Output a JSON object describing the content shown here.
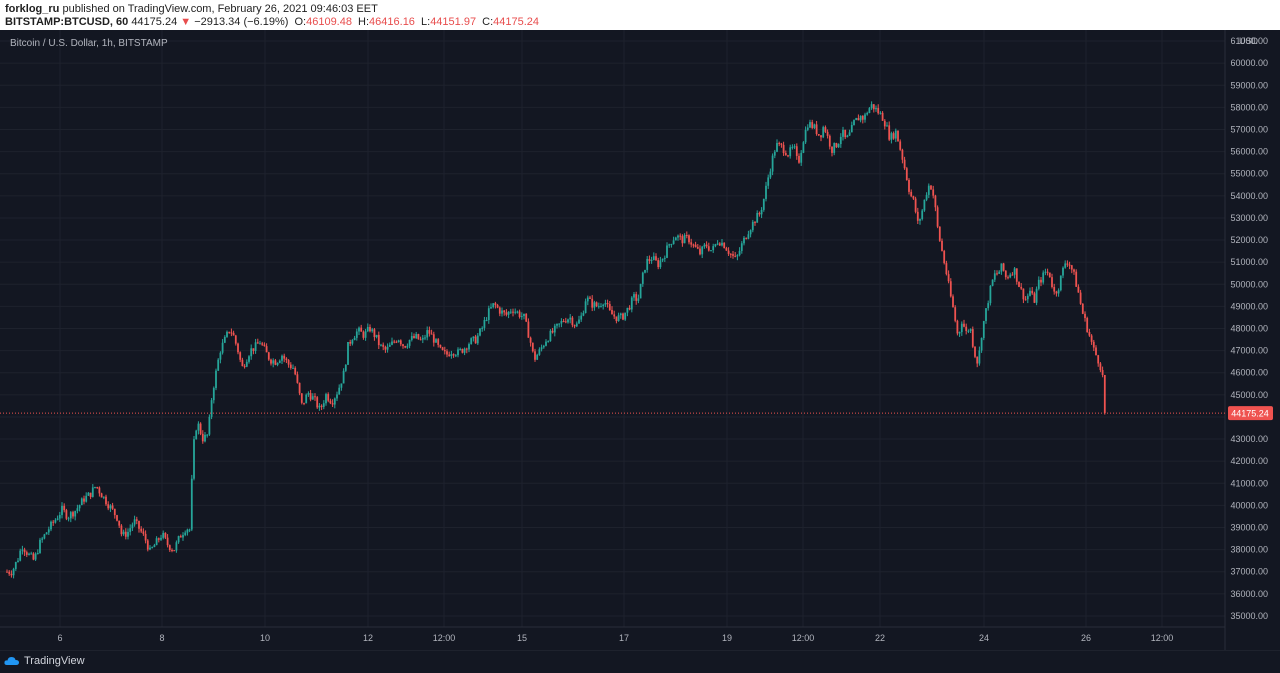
{
  "header": {
    "publisher": "forklog_ru",
    "published_text": "published on TradingView.com, February 26, 2021 09:46:03 EET",
    "symbol": "BITSTAMP:BTCUSD, 60",
    "last": "44175.24",
    "change_arrow": "▼",
    "change": "−2913.34 (−6.19%)",
    "o_label": "O:",
    "o_value": "46109.48",
    "h_label": "H:",
    "h_value": "46416.16",
    "l_label": "L:",
    "l_value": "44151.97",
    "c_label": "C:",
    "c_value": "44175.24"
  },
  "footer": {
    "brand": "TradingView"
  },
  "colors": {
    "up": "#26a69a",
    "down": "#ef5350",
    "background": "#131722",
    "grid": "#1e222d",
    "text": "#b2b5be"
  },
  "chart_data": {
    "type": "candlestick",
    "title": "Bitcoin / U.S. Dollar, 1h, BITSTAMP",
    "currency": "USD",
    "y_axis": {
      "min": 34500,
      "max": 61500,
      "ticks": [
        35000,
        36000,
        37000,
        38000,
        39000,
        40000,
        41000,
        42000,
        43000,
        44000,
        45000,
        46000,
        47000,
        48000,
        49000,
        50000,
        51000,
        52000,
        53000,
        54000,
        55000,
        56000,
        57000,
        58000,
        59000,
        60000,
        61000
      ]
    },
    "y_tick_labels": [
      "35000.00",
      "36000.00",
      "37000.00",
      "38000.00",
      "39000.00",
      "40000.00",
      "41000.00",
      "42000.00",
      "43000.00",
      "44000.00",
      "45000.00",
      "46000.00",
      "47000.00",
      "48000.00",
      "49000.00",
      "50000.00",
      "51000.00",
      "52000.00",
      "53000.00",
      "54000.00",
      "55000.00",
      "56000.00",
      "57000.00",
      "58000.00",
      "59000.00",
      "60000.00",
      "61000.00"
    ],
    "x_tick_labels": [
      "6",
      "8",
      "10",
      "12",
      "12:00",
      "15",
      "17",
      "19",
      "12:00",
      "22",
      "24",
      "26",
      "12:00"
    ],
    "last_price": 44175.24,
    "last_price_label": "44175.24",
    "price_path": [
      [
        0,
        37700
      ],
      [
        6,
        37000
      ],
      [
        12,
        37000
      ],
      [
        18,
        37600
      ],
      [
        22,
        38200
      ],
      [
        28,
        37800
      ],
      [
        34,
        37500
      ],
      [
        40,
        38300
      ],
      [
        48,
        38900
      ],
      [
        56,
        39400
      ],
      [
        62,
        39800
      ],
      [
        68,
        39500
      ],
      [
        76,
        39800
      ],
      [
        84,
        40300
      ],
      [
        90,
        40500
      ],
      [
        96,
        40900
      ],
      [
        100,
        40600
      ],
      [
        106,
        40200
      ],
      [
        112,
        39800
      ],
      [
        118,
        39400
      ],
      [
        122,
        38600
      ],
      [
        128,
        38800
      ],
      [
        134,
        39300
      ],
      [
        140,
        38900
      ],
      [
        146,
        38400
      ],
      [
        150,
        37900
      ],
      [
        156,
        38300
      ],
      [
        162,
        38700
      ],
      [
        168,
        38200
      ],
      [
        174,
        38000
      ],
      [
        180,
        38600
      ],
      [
        186,
        39000
      ],
      [
        190,
        38900
      ],
      [
        193,
        42500
      ],
      [
        197,
        43800
      ],
      [
        203,
        43000
      ],
      [
        208,
        43200
      ],
      [
        212,
        45000
      ],
      [
        216,
        46000
      ],
      [
        220,
        47000
      ],
      [
        226,
        47600
      ],
      [
        230,
        48000
      ],
      [
        234,
        47600
      ],
      [
        238,
        47000
      ],
      [
        242,
        46200
      ],
      [
        246,
        46600
      ],
      [
        250,
        47000
      ],
      [
        256,
        47200
      ],
      [
        260,
        47400
      ],
      [
        266,
        46900
      ],
      [
        270,
        46600
      ],
      [
        276,
        46500
      ],
      [
        282,
        46800
      ],
      [
        288,
        46400
      ],
      [
        294,
        46200
      ],
      [
        298,
        45300
      ],
      [
        302,
        44500
      ],
      [
        308,
        45100
      ],
      [
        314,
        44800
      ],
      [
        320,
        44300
      ],
      [
        326,
        45000
      ],
      [
        332,
        44700
      ],
      [
        338,
        45200
      ],
      [
        344,
        46000
      ],
      [
        348,
        47200
      ],
      [
        352,
        47600
      ],
      [
        358,
        47900
      ],
      [
        364,
        47700
      ],
      [
        370,
        48000
      ],
      [
        376,
        47600
      ],
      [
        380,
        47200
      ],
      [
        386,
        47000
      ],
      [
        392,
        47300
      ],
      [
        398,
        47600
      ],
      [
        404,
        47200
      ],
      [
        410,
        47500
      ],
      [
        416,
        47600
      ],
      [
        422,
        47400
      ],
      [
        428,
        47900
      ],
      [
        434,
        47500
      ],
      [
        440,
        47000
      ],
      [
        446,
        46800
      ],
      [
        452,
        47000
      ],
      [
        458,
        46900
      ],
      [
        464,
        47100
      ],
      [
        470,
        47400
      ],
      [
        476,
        47500
      ],
      [
        482,
        48000
      ],
      [
        488,
        48700
      ],
      [
        494,
        49100
      ],
      [
        500,
        48800
      ],
      [
        506,
        48600
      ],
      [
        512,
        48900
      ],
      [
        518,
        48700
      ],
      [
        524,
        48500
      ],
      [
        530,
        47500
      ],
      [
        534,
        46600
      ],
      [
        540,
        47000
      ],
      [
        546,
        47500
      ],
      [
        552,
        47800
      ],
      [
        558,
        48100
      ],
      [
        564,
        48400
      ],
      [
        570,
        48500
      ],
      [
        576,
        48100
      ],
      [
        582,
        48600
      ],
      [
        586,
        49400
      ],
      [
        592,
        49100
      ],
      [
        598,
        49000
      ],
      [
        604,
        49300
      ],
      [
        610,
        48700
      ],
      [
        616,
        48500
      ],
      [
        622,
        48500
      ],
      [
        628,
        48900
      ],
      [
        634,
        49400
      ],
      [
        638,
        49300
      ],
      [
        642,
        50200
      ],
      [
        646,
        51000
      ],
      [
        652,
        51200
      ],
      [
        658,
        50900
      ],
      [
        664,
        51300
      ],
      [
        670,
        51900
      ],
      [
        676,
        52200
      ],
      [
        682,
        52000
      ],
      [
        688,
        52100
      ],
      [
        694,
        51700
      ],
      [
        700,
        51400
      ],
      [
        706,
        51800
      ],
      [
        712,
        51500
      ],
      [
        718,
        52000
      ],
      [
        724,
        51800
      ],
      [
        730,
        51400
      ],
      [
        736,
        51100
      ],
      [
        742,
        51800
      ],
      [
        748,
        52400
      ],
      [
        752,
        52700
      ],
      [
        756,
        53000
      ],
      [
        760,
        53200
      ],
      [
        764,
        53900
      ],
      [
        768,
        54800
      ],
      [
        772,
        55600
      ],
      [
        776,
        56300
      ],
      [
        782,
        56200
      ],
      [
        788,
        55900
      ],
      [
        794,
        56200
      ],
      [
        798,
        55400
      ],
      [
        804,
        56700
      ],
      [
        808,
        57300
      ],
      [
        814,
        57100
      ],
      [
        820,
        56700
      ],
      [
        824,
        57200
      ],
      [
        828,
        56600
      ],
      [
        832,
        56100
      ],
      [
        838,
        56400
      ],
      [
        842,
        56900
      ],
      [
        846,
        56500
      ],
      [
        850,
        56800
      ],
      [
        854,
        57300
      ],
      [
        860,
        57600
      ],
      [
        864,
        57500
      ],
      [
        868,
        57900
      ],
      [
        872,
        58100
      ],
      [
        876,
        57900
      ],
      [
        882,
        57600
      ],
      [
        886,
        57200
      ],
      [
        890,
        56600
      ],
      [
        896,
        56900
      ],
      [
        902,
        55800
      ],
      [
        906,
        55000
      ],
      [
        910,
        54100
      ],
      [
        914,
        53700
      ],
      [
        918,
        52700
      ],
      [
        922,
        53300
      ],
      [
        926,
        54100
      ],
      [
        930,
        54600
      ],
      [
        934,
        53900
      ],
      [
        938,
        52400
      ],
      [
        942,
        51500
      ],
      [
        946,
        50600
      ],
      [
        950,
        49600
      ],
      [
        954,
        48700
      ],
      [
        958,
        47600
      ],
      [
        962,
        48400
      ],
      [
        966,
        47800
      ],
      [
        970,
        48100
      ],
      [
        974,
        47000
      ],
      [
        978,
        46400
      ],
      [
        982,
        47900
      ],
      [
        986,
        48800
      ],
      [
        990,
        49700
      ],
      [
        994,
        50400
      ],
      [
        998,
        50500
      ],
      [
        1002,
        50800
      ],
      [
        1006,
        50300
      ],
      [
        1010,
        50500
      ],
      [
        1014,
        50700
      ],
      [
        1018,
        50100
      ],
      [
        1022,
        49600
      ],
      [
        1026,
        49300
      ],
      [
        1030,
        49700
      ],
      [
        1034,
        49200
      ],
      [
        1038,
        50000
      ],
      [
        1042,
        50300
      ],
      [
        1046,
        50600
      ],
      [
        1050,
        50400
      ],
      [
        1054,
        49600
      ],
      [
        1058,
        49800
      ],
      [
        1062,
        50500
      ],
      [
        1066,
        51100
      ],
      [
        1070,
        50900
      ],
      [
        1074,
        50400
      ],
      [
        1078,
        49700
      ],
      [
        1082,
        48800
      ],
      [
        1086,
        48200
      ],
      [
        1090,
        47600
      ],
      [
        1094,
        47000
      ],
      [
        1098,
        46600
      ],
      [
        1102,
        46100
      ],
      [
        1106,
        44200
      ]
    ]
  }
}
